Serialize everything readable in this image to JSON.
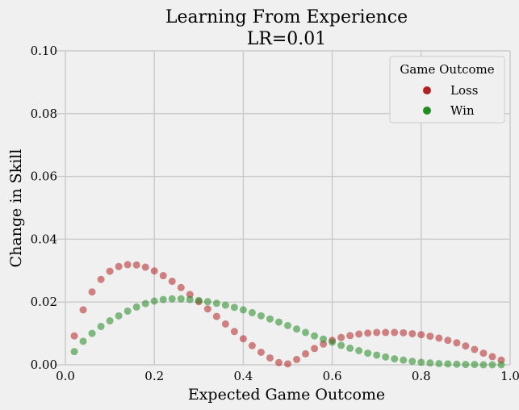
{
  "chart_data": {
    "type": "scatter",
    "title": "Learning From Experience",
    "subtitle": "LR=0.01",
    "xlabel": "Expected Game Outcome",
    "ylabel": "Change in Skill",
    "xlim": [
      -0.02,
      1.0
    ],
    "ylim": [
      0.0,
      0.1
    ],
    "xticks": [
      0.0,
      0.2,
      0.4,
      0.6,
      0.8,
      1.0
    ],
    "xtick_labels": [
      "0.0",
      "0.2",
      "0.4",
      "0.6",
      "0.8",
      "1.0"
    ],
    "yticks": [
      0.0,
      0.02,
      0.04,
      0.06,
      0.08,
      0.1
    ],
    "ytick_labels": [
      "0.00",
      "0.02",
      "0.04",
      "0.06",
      "0.08",
      "0.10"
    ],
    "grid": true,
    "legend": {
      "title": "Game Outcome",
      "position": "top-right",
      "entries": [
        "Loss",
        "Win"
      ]
    },
    "colors": {
      "Loss": "#b22222",
      "Win": "#228b22"
    },
    "series": [
      {
        "name": "Loss",
        "color": "#b22222",
        "x": [
          0.02,
          0.04,
          0.06,
          0.08,
          0.1,
          0.12,
          0.14,
          0.16,
          0.18,
          0.2,
          0.22,
          0.24,
          0.26,
          0.28,
          0.3,
          0.32,
          0.34,
          0.36,
          0.38,
          0.4,
          0.42,
          0.44,
          0.46,
          0.48,
          0.5,
          0.52,
          0.54,
          0.56,
          0.58,
          0.6,
          0.62,
          0.64,
          0.66,
          0.68,
          0.7,
          0.72,
          0.74,
          0.76,
          0.78,
          0.8,
          0.82,
          0.84,
          0.86,
          0.88,
          0.9,
          0.92,
          0.94,
          0.96,
          0.98
        ],
        "y": [
          0.0092,
          0.0175,
          0.0232,
          0.0272,
          0.0298,
          0.0313,
          0.0319,
          0.0318,
          0.0311,
          0.0299,
          0.0284,
          0.0266,
          0.0246,
          0.0224,
          0.0201,
          0.0178,
          0.0154,
          0.013,
          0.0106,
          0.0083,
          0.0061,
          0.004,
          0.0022,
          0.0007,
          0.0003,
          0.0017,
          0.0035,
          0.0052,
          0.0066,
          0.0078,
          0.0087,
          0.0093,
          0.0098,
          0.0101,
          0.0103,
          0.0103,
          0.0103,
          0.0102,
          0.0099,
          0.0096,
          0.0091,
          0.0085,
          0.0078,
          0.007,
          0.006,
          0.0049,
          0.0037,
          0.0026,
          0.0015
        ]
      },
      {
        "name": "Win",
        "color": "#228b22",
        "x": [
          0.02,
          0.04,
          0.06,
          0.08,
          0.1,
          0.12,
          0.14,
          0.16,
          0.18,
          0.2,
          0.22,
          0.24,
          0.26,
          0.28,
          0.3,
          0.32,
          0.34,
          0.36,
          0.38,
          0.4,
          0.42,
          0.44,
          0.46,
          0.48,
          0.5,
          0.52,
          0.54,
          0.56,
          0.58,
          0.6,
          0.62,
          0.64,
          0.66,
          0.68,
          0.7,
          0.72,
          0.74,
          0.76,
          0.78,
          0.8,
          0.82,
          0.84,
          0.86,
          0.88,
          0.9,
          0.92,
          0.94,
          0.96,
          0.98
        ],
        "y": [
          0.0042,
          0.0075,
          0.01,
          0.0122,
          0.014,
          0.0156,
          0.0171,
          0.0184,
          0.0195,
          0.0203,
          0.0208,
          0.021,
          0.021,
          0.0208,
          0.0205,
          0.0201,
          0.0196,
          0.019,
          0.0183,
          0.0175,
          0.0166,
          0.0156,
          0.0146,
          0.0136,
          0.0125,
          0.0114,
          0.0103,
          0.0092,
          0.0082,
          0.0072,
          0.0062,
          0.0053,
          0.0045,
          0.0037,
          0.0031,
          0.0025,
          0.0019,
          0.0015,
          0.0011,
          0.0008,
          0.0006,
          0.0004,
          0.0003,
          0.0002,
          0.0001,
          0.0001,
          0.0,
          0.0,
          0.0
        ]
      }
    ]
  }
}
